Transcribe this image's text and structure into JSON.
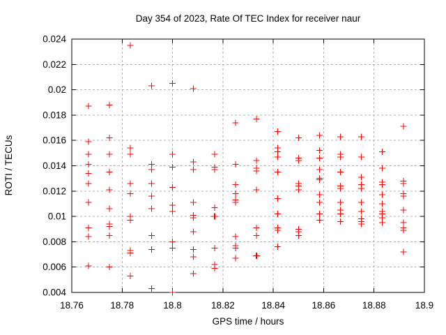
{
  "chart_data": {
    "type": "scatter",
    "title": "Day 354 of 2023, Rate Of TEC Index for receiver naur",
    "xlabel": "GPS time / hours",
    "ylabel": "ROTI / TECUs",
    "xlim": [
      18.76,
      18.9
    ],
    "ylim": [
      0.004,
      0.024
    ],
    "xticks": [
      18.76,
      18.78,
      18.8,
      18.82,
      18.84,
      18.86,
      18.88,
      18.9
    ],
    "xtick_labels": [
      "18.76",
      "18.78",
      "18.8",
      "18.82",
      "18.84",
      "18.86",
      "18.88",
      "18.9"
    ],
    "yticks": [
      0.004,
      0.006,
      0.008,
      0.01,
      0.012,
      0.014,
      0.016,
      0.018,
      0.02,
      0.022,
      0.024
    ],
    "ytick_labels": [
      "0.004",
      "0.006",
      "0.008",
      "0.01",
      "0.012",
      "0.014",
      "0.016",
      "0.018",
      "0.02",
      "0.022",
      "0.024"
    ],
    "grid": true,
    "legend_position": "none",
    "marker": {
      "shape": "plus",
      "size": 9
    },
    "style": {
      "marker_color": "#ff0000",
      "grid_color": "#b0b0b0",
      "border_color": "#000000",
      "text_color": "#000000",
      "background": "#ffffff"
    },
    "series": [
      {
        "name": "ROTI",
        "points": [
          [
            18.7667,
            0.0187
          ],
          [
            18.7667,
            0.0159
          ],
          [
            18.7667,
            0.0149
          ],
          [
            18.7667,
            0.0141
          ],
          [
            18.7667,
            0.0134
          ],
          [
            18.7667,
            0.0126
          ],
          [
            18.7667,
            0.0111
          ],
          [
            18.7667,
            0.0091
          ],
          [
            18.7667,
            0.0084
          ],
          [
            18.7667,
            0.0061
          ],
          [
            18.775,
            0.0188
          ],
          [
            18.775,
            0.0162
          ],
          [
            18.775,
            0.0149
          ],
          [
            18.775,
            0.0135
          ],
          [
            18.775,
            0.0121
          ],
          [
            18.775,
            0.0106
          ],
          [
            18.775,
            0.0094
          ],
          [
            18.775,
            0.0092
          ],
          [
            18.775,
            0.0085
          ],
          [
            18.775,
            0.006
          ],
          [
            18.7833,
            0.0235
          ],
          [
            18.7833,
            0.0154
          ],
          [
            18.7833,
            0.0149
          ],
          [
            18.7833,
            0.0126
          ],
          [
            18.7833,
            0.0118
          ],
          [
            18.7833,
            0.01
          ],
          [
            18.7833,
            0.0097
          ],
          [
            18.7833,
            0.0073
          ],
          [
            18.7833,
            0.0071
          ],
          [
            18.7833,
            0.0053
          ],
          [
            18.7917,
            0.0203
          ],
          [
            18.7917,
            0.0141
          ],
          [
            18.7917,
            0.0137
          ],
          [
            18.7917,
            0.0126
          ],
          [
            18.7917,
            0.0116
          ],
          [
            18.7917,
            0.0106
          ],
          [
            18.7917,
            0.0085
          ],
          [
            18.7917,
            0.0074
          ],
          [
            18.7917,
            0.0043
          ],
          [
            18.8,
            0.0205
          ],
          [
            18.8,
            0.0149
          ],
          [
            18.8,
            0.0139
          ],
          [
            18.8,
            0.0123
          ],
          [
            18.8,
            0.0109
          ],
          [
            18.8,
            0.0104
          ],
          [
            18.8,
            0.008
          ],
          [
            18.8,
            0.0075
          ],
          [
            18.8,
            0.004
          ],
          [
            18.8083,
            0.0201
          ],
          [
            18.8083,
            0.0143
          ],
          [
            18.8083,
            0.0137
          ],
          [
            18.8083,
            0.0111
          ],
          [
            18.8083,
            0.0101
          ],
          [
            18.8083,
            0.0099
          ],
          [
            18.8083,
            0.0088
          ],
          [
            18.8083,
            0.0074
          ],
          [
            18.8083,
            0.0068
          ],
          [
            18.8083,
            0.0055
          ],
          [
            18.8167,
            0.0149
          ],
          [
            18.8167,
            0.0139
          ],
          [
            18.8167,
            0.0137
          ],
          [
            18.8167,
            0.0107
          ],
          [
            18.8166,
            0.01
          ],
          [
            18.8169,
            0.01
          ],
          [
            18.8167,
            0.0075
          ],
          [
            18.8167,
            0.0062
          ],
          [
            18.8167,
            0.0059
          ],
          [
            18.825,
            0.0174
          ],
          [
            18.825,
            0.0141
          ],
          [
            18.825,
            0.0125
          ],
          [
            18.825,
            0.0118
          ],
          [
            18.825,
            0.0113
          ],
          [
            18.825,
            0.0111
          ],
          [
            18.825,
            0.0084
          ],
          [
            18.825,
            0.0077
          ],
          [
            18.825,
            0.0075
          ],
          [
            18.825,
            0.0067
          ],
          [
            18.8333,
            0.0177
          ],
          [
            18.8333,
            0.0144
          ],
          [
            18.8333,
            0.0138
          ],
          [
            18.8333,
            0.0136
          ],
          [
            18.8333,
            0.0121
          ],
          [
            18.8333,
            0.0091
          ],
          [
            18.8333,
            0.0085
          ],
          [
            18.8332,
            0.0069
          ],
          [
            18.8335,
            0.0069
          ],
          [
            18.8417,
            0.0167
          ],
          [
            18.8417,
            0.0154
          ],
          [
            18.8417,
            0.0151
          ],
          [
            18.8417,
            0.0147
          ],
          [
            18.8417,
            0.0135
          ],
          [
            18.8417,
            0.0114
          ],
          [
            18.8417,
            0.0102
          ],
          [
            18.8417,
            0.0091
          ],
          [
            18.8417,
            0.0089
          ],
          [
            18.8417,
            0.0076
          ],
          [
            18.85,
            0.0162
          ],
          [
            18.85,
            0.0146
          ],
          [
            18.85,
            0.0144
          ],
          [
            18.85,
            0.0126
          ],
          [
            18.85,
            0.0124
          ],
          [
            18.85,
            0.0121
          ],
          [
            18.85,
            0.009
          ],
          [
            18.85,
            0.0088
          ],
          [
            18.85,
            0.0085
          ],
          [
            18.8583,
            0.0164
          ],
          [
            18.8583,
            0.0152
          ],
          [
            18.8583,
            0.0146
          ],
          [
            18.8583,
            0.0137
          ],
          [
            18.8583,
            0.013
          ],
          [
            18.8583,
            0.0129
          ],
          [
            18.8583,
            0.0117
          ],
          [
            18.8583,
            0.0111
          ],
          [
            18.8583,
            0.0102
          ],
          [
            18.8583,
            0.0097
          ],
          [
            18.8667,
            0.0163
          ],
          [
            18.8667,
            0.0149
          ],
          [
            18.8667,
            0.0147
          ],
          [
            18.8667,
            0.0135
          ],
          [
            18.8667,
            0.0124
          ],
          [
            18.8667,
            0.0122
          ],
          [
            18.8667,
            0.0111
          ],
          [
            18.8667,
            0.0105
          ],
          [
            18.8667,
            0.0102
          ],
          [
            18.8667,
            0.0096
          ],
          [
            18.875,
            0.0163
          ],
          [
            18.875,
            0.0147
          ],
          [
            18.875,
            0.0131
          ],
          [
            18.875,
            0.0125
          ],
          [
            18.875,
            0.0122
          ],
          [
            18.875,
            0.0111
          ],
          [
            18.875,
            0.0104
          ],
          [
            18.875,
            0.0098
          ],
          [
            18.875,
            0.0096
          ],
          [
            18.875,
            0.0094
          ],
          [
            18.8833,
            0.0151
          ],
          [
            18.8833,
            0.0138
          ],
          [
            18.8833,
            0.0127
          ],
          [
            18.8833,
            0.0125
          ],
          [
            18.8833,
            0.0117
          ],
          [
            18.8833,
            0.011
          ],
          [
            18.8833,
            0.0104
          ],
          [
            18.8833,
            0.0102
          ],
          [
            18.8833,
            0.0099
          ],
          [
            18.8833,
            0.0095
          ],
          [
            18.8917,
            0.0171
          ],
          [
            18.8917,
            0.0128
          ],
          [
            18.8917,
            0.0126
          ],
          [
            18.8917,
            0.0118
          ],
          [
            18.8917,
            0.0116
          ],
          [
            18.8917,
            0.0105
          ],
          [
            18.8917,
            0.0095
          ],
          [
            18.8917,
            0.0091
          ],
          [
            18.8917,
            0.0089
          ],
          [
            18.8917,
            0.0072
          ]
        ]
      }
    ]
  }
}
